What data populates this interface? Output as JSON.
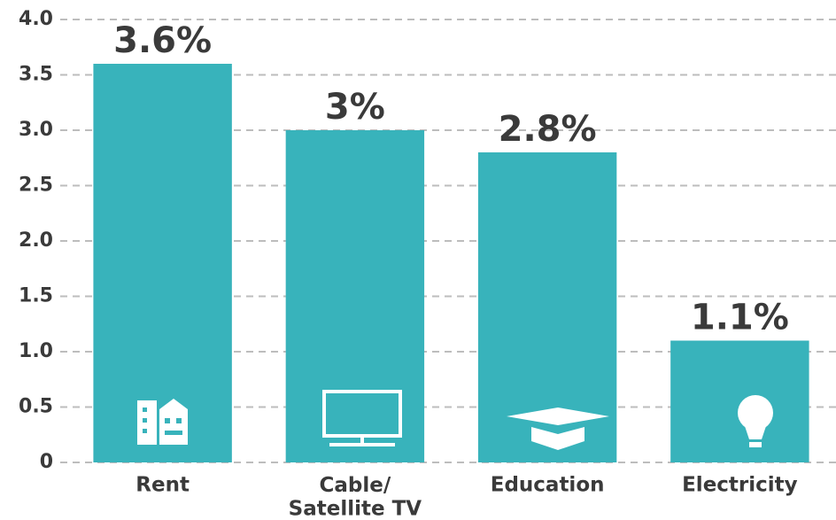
{
  "chart_data": {
    "type": "bar",
    "categories": [
      "Rent",
      "Cable/\nSatellite TV",
      "Education",
      "Electricity"
    ],
    "values": [
      3.6,
      3,
      2.8,
      1.1
    ],
    "value_labels": [
      "3.6%",
      "3%",
      "2.8%",
      "1.1%"
    ],
    "color": "#38b3bb",
    "ylim": [
      0,
      4
    ],
    "yticks": [
      0,
      0.5,
      {
        "value": 1,
        "label": "1.0"
      },
      1.5,
      {
        "value": 2,
        "label": "2.0"
      },
      2.5,
      {
        "value": 3,
        "label": "3.0"
      },
      3.5,
      {
        "value": 4,
        "label": "4.0"
      }
    ],
    "grid": true
  }
}
